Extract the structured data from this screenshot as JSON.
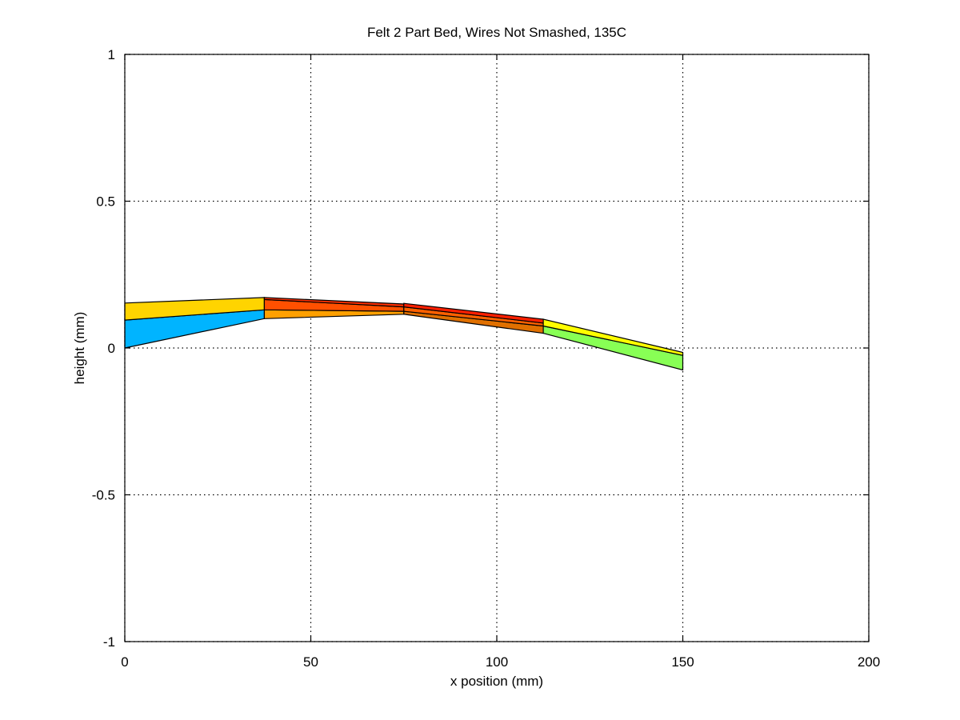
{
  "chart_data": {
    "type": "area",
    "title": "Felt 2 Part  Bed, Wires Not Smashed, 135C",
    "xlabel": "x position (mm)",
    "ylabel": "height (mm)",
    "xlim": [
      0,
      200
    ],
    "ylim": [
      -1,
      1
    ],
    "xticks": [
      0,
      50,
      100,
      150,
      200
    ],
    "xtick_labels": [
      "0",
      "50",
      "100",
      "150",
      "200"
    ],
    "yticks": [
      -1,
      -0.5,
      0,
      0.5,
      1
    ],
    "ytick_labels": [
      "-1",
      "-0.5",
      "0",
      "0.5",
      "1"
    ],
    "grid": true,
    "patches": [
      {
        "color": "#00b4ff",
        "points": [
          [
            0,
            0.0
          ],
          [
            37.5,
            0.1
          ],
          [
            37.5,
            0.13
          ],
          [
            0,
            0.095
          ]
        ]
      },
      {
        "color": "#ffd400",
        "points": [
          [
            0,
            0.095
          ],
          [
            37.5,
            0.13
          ],
          [
            37.5,
            0.172
          ],
          [
            0,
            0.153
          ]
        ]
      },
      {
        "color": "#ffa000",
        "points": [
          [
            37.5,
            0.1
          ],
          [
            75,
            0.115
          ],
          [
            75,
            0.125
          ],
          [
            37.5,
            0.13
          ]
        ]
      },
      {
        "color": "#ff5000",
        "points": [
          [
            37.5,
            0.13
          ],
          [
            75,
            0.125
          ],
          [
            75,
            0.14
          ],
          [
            37.5,
            0.165
          ]
        ]
      },
      {
        "color": "#ff3000",
        "points": [
          [
            37.5,
            0.165
          ],
          [
            75,
            0.14
          ],
          [
            75,
            0.15
          ],
          [
            37.5,
            0.172
          ]
        ]
      },
      {
        "color": "#e07000",
        "points": [
          [
            75,
            0.115
          ],
          [
            112.5,
            0.05
          ],
          [
            112.5,
            0.075
          ],
          [
            75,
            0.125
          ]
        ]
      },
      {
        "color": "#ff6000",
        "points": [
          [
            75,
            0.125
          ],
          [
            112.5,
            0.075
          ],
          [
            112.5,
            0.085
          ],
          [
            75,
            0.14
          ]
        ]
      },
      {
        "color": "#ff2000",
        "points": [
          [
            75,
            0.14
          ],
          [
            112.5,
            0.085
          ],
          [
            112.5,
            0.098
          ],
          [
            75,
            0.152
          ]
        ]
      },
      {
        "color": "#88ff55",
        "points": [
          [
            112.5,
            0.05
          ],
          [
            150,
            -0.075
          ],
          [
            150,
            -0.025
          ],
          [
            112.5,
            0.075
          ]
        ]
      },
      {
        "color": "#ffff00",
        "points": [
          [
            112.5,
            0.075
          ],
          [
            150,
            -0.025
          ],
          [
            150,
            -0.015
          ],
          [
            112.5,
            0.098
          ]
        ]
      }
    ]
  }
}
